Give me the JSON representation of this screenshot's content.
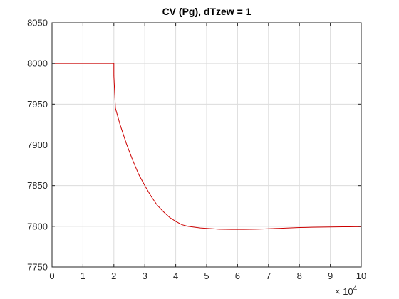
{
  "chart_data": {
    "type": "line",
    "title": "CV (Pg), dTzew = 1",
    "xlabel": "",
    "ylabel": "",
    "xlim": [
      0,
      100000
    ],
    "ylim": [
      7750,
      8050
    ],
    "x_ticks": [
      0,
      10000,
      20000,
      30000,
      40000,
      50000,
      60000,
      70000,
      80000,
      90000,
      100000
    ],
    "x_tick_labels": [
      "0",
      "1",
      "2",
      "3",
      "4",
      "5",
      "6",
      "7",
      "8",
      "9",
      "10"
    ],
    "x_exponent_base": "× 10",
    "x_exponent_power": "4",
    "y_ticks": [
      7750,
      7800,
      7850,
      7900,
      7950,
      8000,
      8050
    ],
    "y_tick_labels": [
      "7750",
      "7800",
      "7850",
      "7900",
      "7950",
      "8000",
      "8050"
    ],
    "grid": true,
    "series": [
      {
        "color": "#cc0000",
        "x": [
          0,
          20000,
          20000,
          20500,
          22000,
          24000,
          26000,
          28000,
          30000,
          32000,
          34000,
          36000,
          38000,
          40000,
          42000,
          44000,
          46000,
          48000,
          50000,
          52000,
          54000,
          56000,
          58000,
          60000,
          62000,
          64000,
          66000,
          68000,
          70000,
          72000,
          74000,
          76000,
          78000,
          80000,
          82000,
          84000,
          86000,
          88000,
          90000,
          92000,
          94000,
          96000,
          98000,
          100000
        ],
        "y": [
          8000,
          8000,
          7985,
          7945,
          7925,
          7902,
          7882,
          7864,
          7850,
          7837,
          7826,
          7818,
          7811,
          7806,
          7802,
          7800,
          7799,
          7798,
          7797.5,
          7797,
          7796.5,
          7796.3,
          7796.2,
          7796.2,
          7796.2,
          7796.3,
          7796.5,
          7796.7,
          7797,
          7797.3,
          7797.6,
          7797.9,
          7798.2,
          7798.5,
          7798.7,
          7798.9,
          7799,
          7799.1,
          7799.2,
          7799.3,
          7799.4,
          7799.4,
          7799.5,
          7799.5
        ]
      }
    ]
  }
}
